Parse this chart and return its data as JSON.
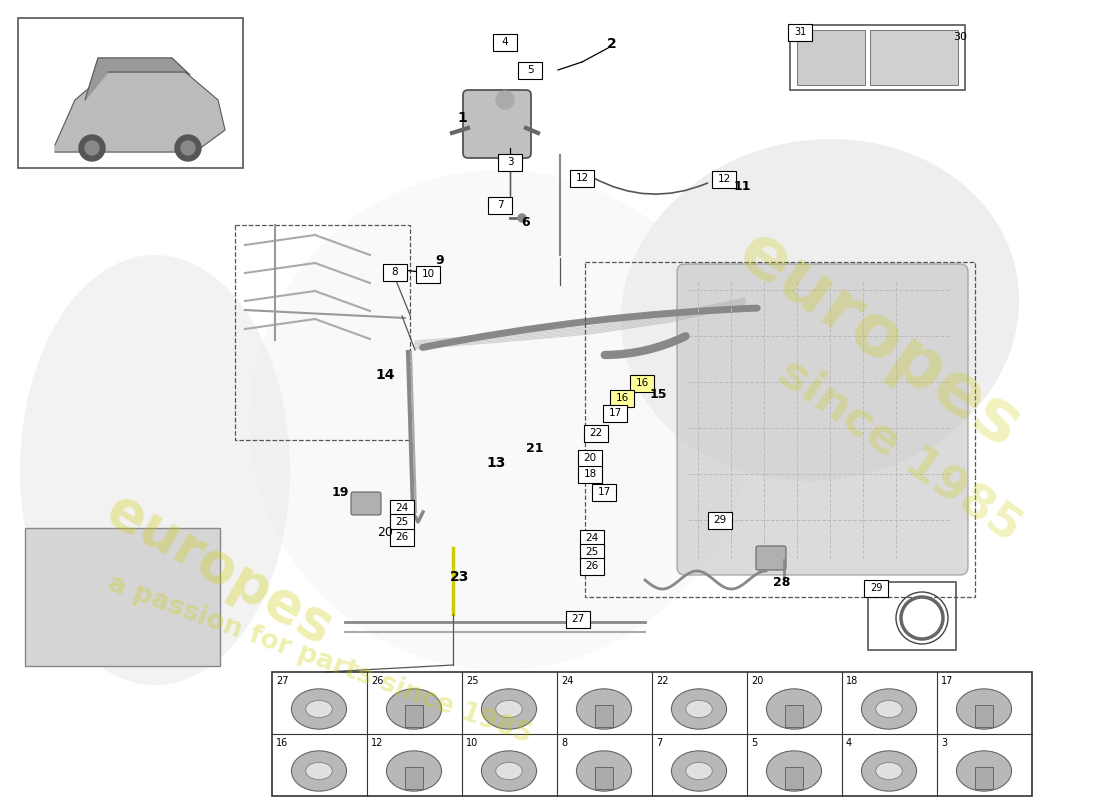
{
  "bg_color": "#ffffff",
  "label_box_color": "#ffffff",
  "label_box_edge": "#000000",
  "highlight_box_color": "#ffff99",
  "row1_nums": [
    "27",
    "26",
    "25",
    "24",
    "22",
    "20",
    "18",
    "17"
  ],
  "row2_nums": [
    "16",
    "12",
    "10",
    "8",
    "7",
    "5",
    "4",
    "3"
  ]
}
